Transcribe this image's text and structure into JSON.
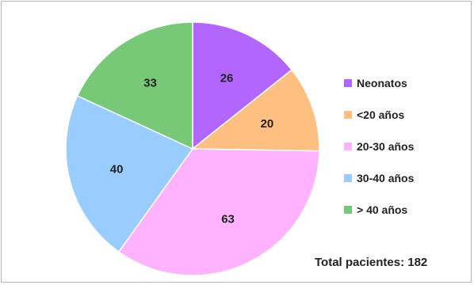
{
  "chart_data": {
    "type": "pie",
    "title": "",
    "categories": [
      "Neonatos",
      "<20 años",
      "20-30 años",
      "30-40 años",
      "> 40 años"
    ],
    "values": [
      26,
      20,
      63,
      40,
      33
    ],
    "colors": [
      "#b266ff",
      "#ffbf80",
      "#ffb3ff",
      "#99ccff",
      "#77c877"
    ],
    "legend_position": "right",
    "start_angle_deg": 0,
    "direction": "clockwise"
  },
  "annotation": {
    "total": "Total pacientes: 182"
  }
}
